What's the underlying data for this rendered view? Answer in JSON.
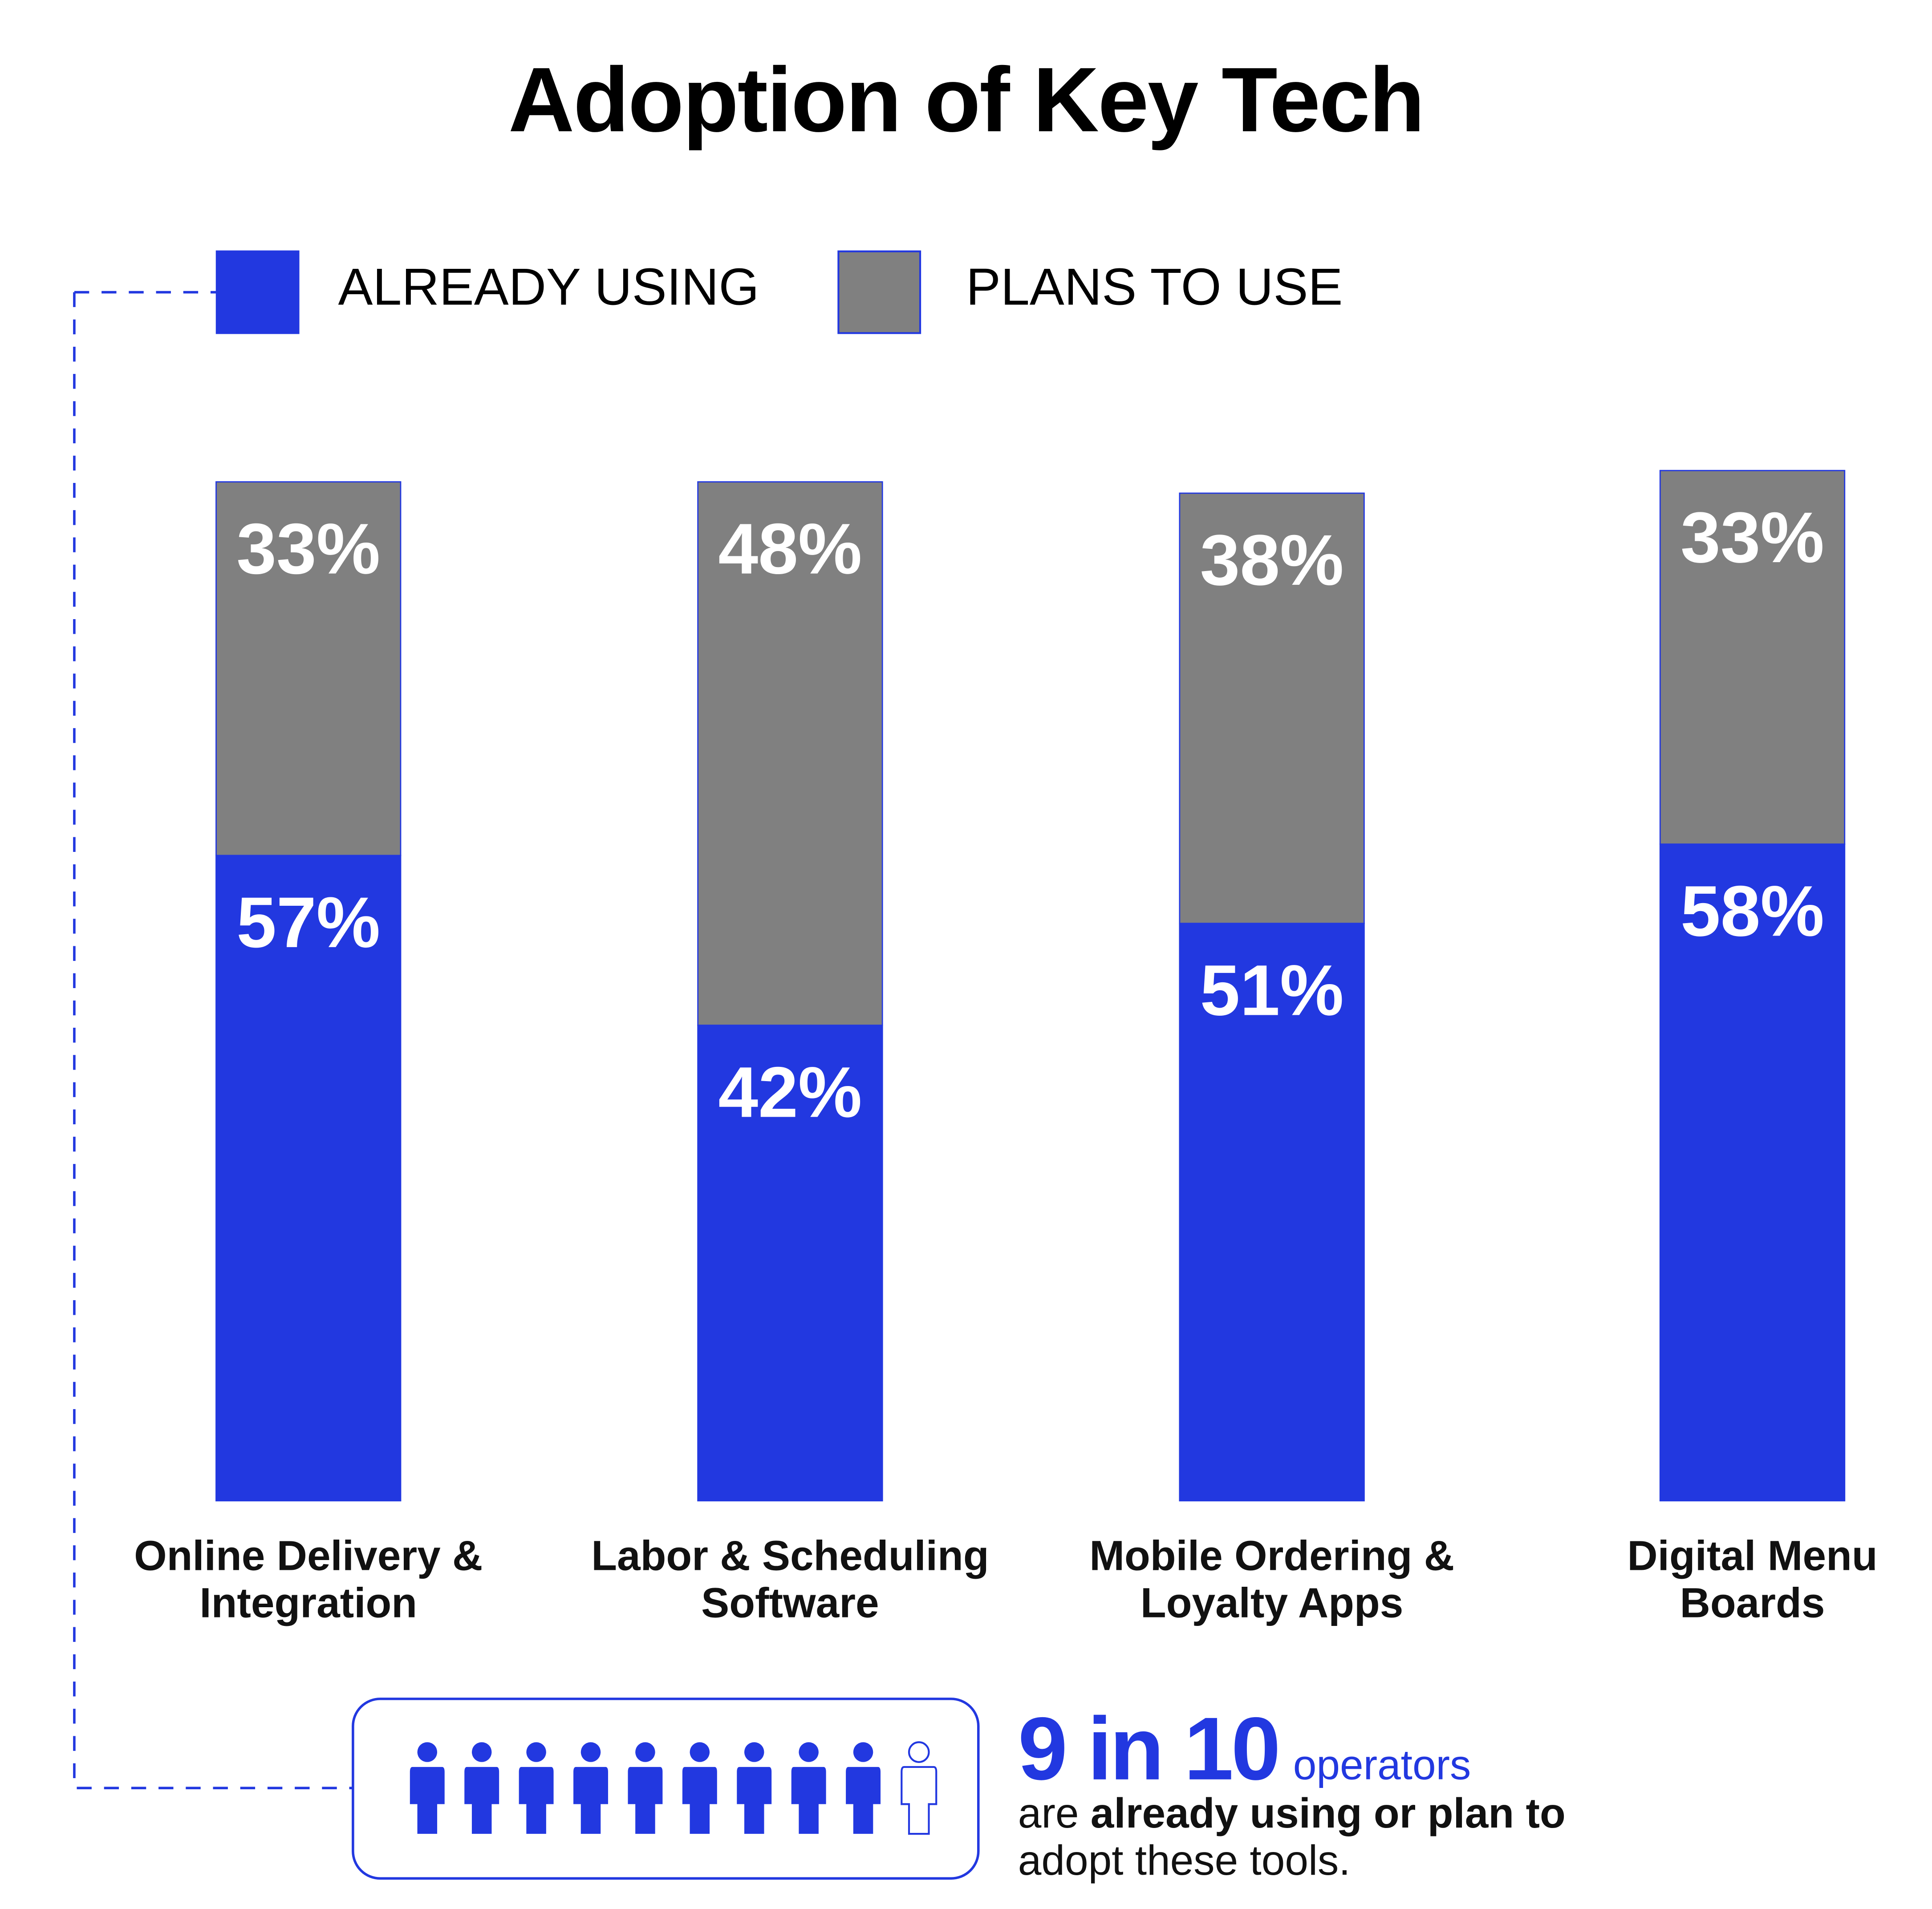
{
  "chart_data": {
    "type": "stacked-bar",
    "title": "Adoption of Key Tech",
    "categories": [
      "Online Delivery & Integration",
      "Labor & Scheduling Software",
      "Mobile Ordering & Loyalty Apps",
      "Digital Menu Boards"
    ],
    "series": [
      {
        "name": "ALREADY USING",
        "color": "#2238e0",
        "values": [
          57,
          42,
          51,
          58
        ],
        "value_labels": [
          "57%",
          "42%",
          "51%",
          "58%"
        ]
      },
      {
        "name": "PLANS TO USE",
        "color": "#808080",
        "values": [
          33,
          48,
          38,
          33
        ],
        "value_labels": [
          "33%",
          "48%",
          "38%",
          "33%"
        ]
      }
    ]
  },
  "callout": {
    "headline": "9 in 10",
    "unit": "operators",
    "lead": "are",
    "emphasis": "already using or plan to",
    "tail": "adopt these tools."
  }
}
